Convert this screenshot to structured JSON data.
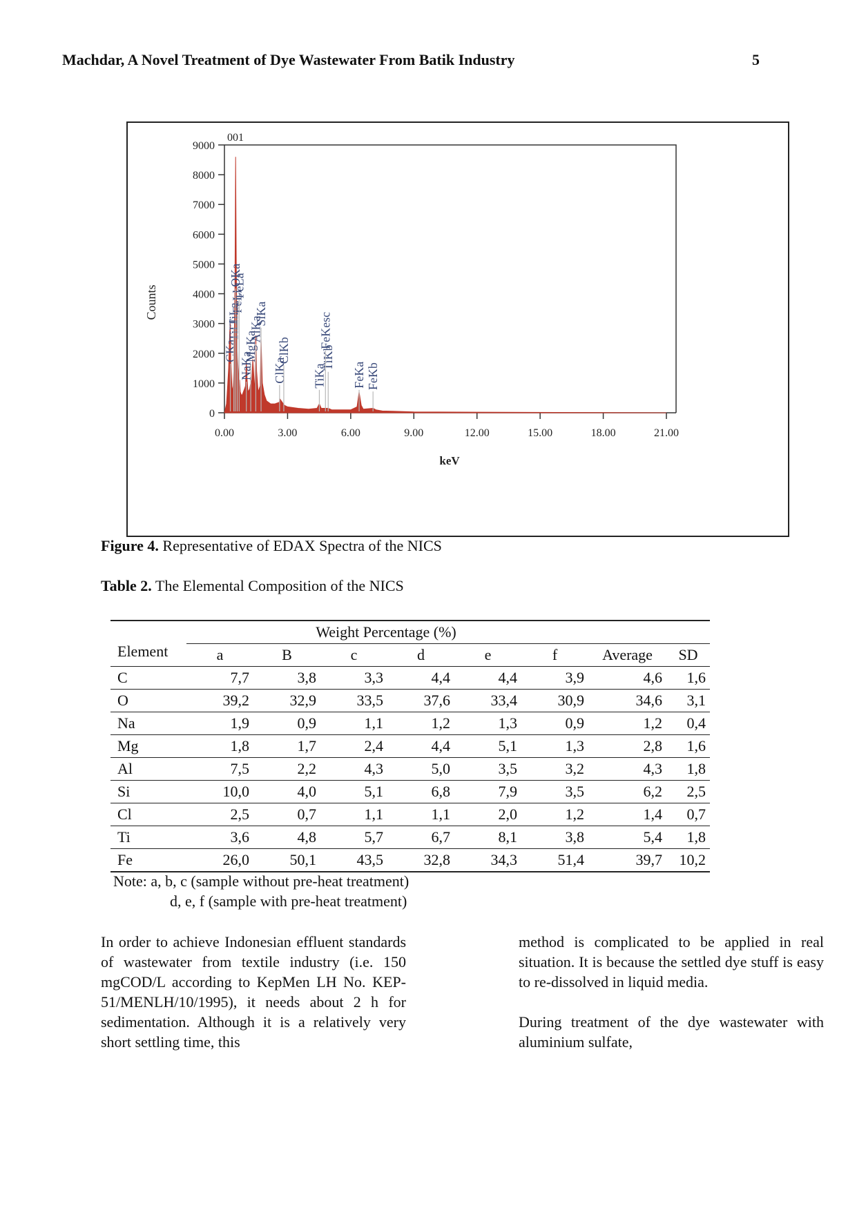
{
  "header": {
    "running_title": "Machdar, A Novel Treatment of Dye Wastewater From Batik Industry",
    "page_number": "5"
  },
  "figure": {
    "label": "Figure 4.",
    "caption": "Representative of EDAX Spectra of the NICS",
    "chart_data": {
      "type": "line",
      "spectrum_id": "001",
      "xlabel": "keV",
      "ylabel": "Counts",
      "xlim": [
        0,
        21
      ],
      "ylim": [
        0,
        9000
      ],
      "x_ticks": [
        "0.00",
        "3.00",
        "6.00",
        "9.00",
        "12.00",
        "15.00",
        "18.00",
        "21.00"
      ],
      "y_ticks": [
        "0",
        "1000",
        "2000",
        "3000",
        "4000",
        "5000",
        "6000",
        "7000",
        "8000",
        "9000"
      ],
      "series_color": "#c0392b",
      "label_color": "#3a4a7a",
      "series": [
        {
          "x": [
            0.0,
            0.1,
            0.15,
            0.2,
            0.25,
            0.28,
            0.3,
            0.35,
            0.4,
            0.45,
            0.5,
            0.53,
            0.56,
            0.6,
            0.65,
            0.7,
            0.72,
            0.75,
            0.8,
            0.85,
            0.9,
            0.95,
            1.0,
            1.04,
            1.08,
            1.12,
            1.2,
            1.25,
            1.3,
            1.35,
            1.4,
            1.45,
            1.49,
            1.53,
            1.6,
            1.65,
            1.7,
            1.74,
            1.8,
            1.9,
            2.0,
            2.2,
            2.4,
            2.6,
            2.65,
            2.7,
            2.85,
            3.0,
            3.5,
            4.0,
            4.4,
            4.51,
            4.6,
            4.93,
            5.1,
            5.5,
            6.0,
            6.3,
            6.4,
            6.5,
            6.6,
            7.06,
            7.2,
            7.5,
            8.0,
            9.0,
            12.0,
            21.0
          ],
          "y": [
            0,
            300,
            900,
            1500,
            2700,
            3000,
            1800,
            900,
            700,
            1500,
            4200,
            8600,
            5200,
            2200,
            1500,
            1100,
            1100,
            700,
            600,
            600,
            700,
            800,
            900,
            1700,
            1100,
            700,
            800,
            1000,
            1100,
            1800,
            1200,
            700,
            2600,
            1400,
            700,
            800,
            900,
            2500,
            1000,
            600,
            400,
            300,
            300,
            350,
            450,
            400,
            250,
            200,
            150,
            120,
            150,
            300,
            150,
            150,
            100,
            100,
            100,
            200,
            700,
            250,
            120,
            150,
            100,
            60,
            50,
            30,
            20,
            0
          ]
        }
      ],
      "peak_labels": [
        {
          "text": "CKa",
          "x": 0.28,
          "y": 3000
        },
        {
          "text": "TiLl",
          "x": 0.45,
          "y": 4300
        },
        {
          "text": "TiLa",
          "x": 0.45,
          "y": 5200
        },
        {
          "text": "FeLl",
          "x": 0.61,
          "y": 6000
        },
        {
          "text": "FeLa",
          "x": 0.7,
          "y": 6900
        },
        {
          "text": "OKa",
          "x": 0.53,
          "y": 7600
        },
        {
          "text": "NaKa",
          "x": 1.04,
          "y": 1900
        },
        {
          "text": "MgKa",
          "x": 1.25,
          "y": 3000
        },
        {
          "text": "AlKa",
          "x": 1.49,
          "y": 4200
        },
        {
          "text": "SiKa",
          "x": 1.74,
          "y": 5200
        },
        {
          "text": "ClKa",
          "x": 2.62,
          "y": 1700
        },
        {
          "text": "ClKb",
          "x": 2.82,
          "y": 2900
        },
        {
          "text": "TiKa",
          "x": 4.51,
          "y": 1400
        },
        {
          "text": "TiKb",
          "x": 4.93,
          "y": 2500
        },
        {
          "text": "FeKesc",
          "x": 4.8,
          "y": 3800
        },
        {
          "text": "FeKa",
          "x": 6.4,
          "y": 1400
        },
        {
          "text": "FeKb",
          "x": 7.06,
          "y": 1300
        }
      ]
    }
  },
  "table": {
    "label": "Table 2.",
    "caption": "The Elemental Composition of the NICS",
    "group_header": "Weight Percentage (%)",
    "element_header": "Element",
    "columns": [
      "a",
      "B",
      "c",
      "d",
      "e",
      "f",
      "Average",
      "SD"
    ],
    "rows": [
      {
        "element": "C",
        "values": [
          "7,7",
          "3,8",
          "3,3",
          "4,4",
          "4,4",
          "3,9",
          "4,6",
          "1,6"
        ]
      },
      {
        "element": "O",
        "values": [
          "39,2",
          "32,9",
          "33,5",
          "37,6",
          "33,4",
          "30,9",
          "34,6",
          "3,1"
        ]
      },
      {
        "element": "Na",
        "values": [
          "1,9",
          "0,9",
          "1,1",
          "1,2",
          "1,3",
          "0,9",
          "1,2",
          "0,4"
        ]
      },
      {
        "element": "Mg",
        "values": [
          "1,8",
          "1,7",
          "2,4",
          "4,4",
          "5,1",
          "1,3",
          "2,8",
          "1,6"
        ]
      },
      {
        "element": "Al",
        "values": [
          "7,5",
          "2,2",
          "4,3",
          "5,0",
          "3,5",
          "3,2",
          "4,3",
          "1,8"
        ]
      },
      {
        "element": "Si",
        "values": [
          "10,0",
          "4,0",
          "5,1",
          "6,8",
          "7,9",
          "3,5",
          "6,2",
          "2,5"
        ]
      },
      {
        "element": "Cl",
        "values": [
          "2,5",
          "0,7",
          "1,1",
          "1,1",
          "2,0",
          "1,2",
          "1,4",
          "0,7"
        ]
      },
      {
        "element": "Ti",
        "values": [
          "3,6",
          "4,8",
          "5,7",
          "6,7",
          "8,1",
          "3,8",
          "5,4",
          "1,8"
        ]
      },
      {
        "element": "Fe",
        "values": [
          "26,0",
          "50,1",
          "43,5",
          "32,8",
          "34,3",
          "51,4",
          "39,7",
          "10,2"
        ]
      }
    ],
    "note_line1": "Note: a, b, c (sample without pre-heat treatment)",
    "note_line2": "d, e, f (sample with pre-heat treatment)"
  },
  "body": {
    "left_column": "In order to achieve Indonesian effluent standards of wastewater from textile industry (i.e. 150 mgCOD/L according to KepMen LH No. KEP-51/MENLH/10/1995), it needs about 2 h for sedimentation. Although it is a relatively very short settling time, this",
    "right_column_p1": "method is complicated to be applied in real situation. It is because the settled dye stuff is easy to re-dissolved in liquid media.",
    "right_column_p2": "During treatment of the dye wastewater with aluminium sulfate,"
  }
}
